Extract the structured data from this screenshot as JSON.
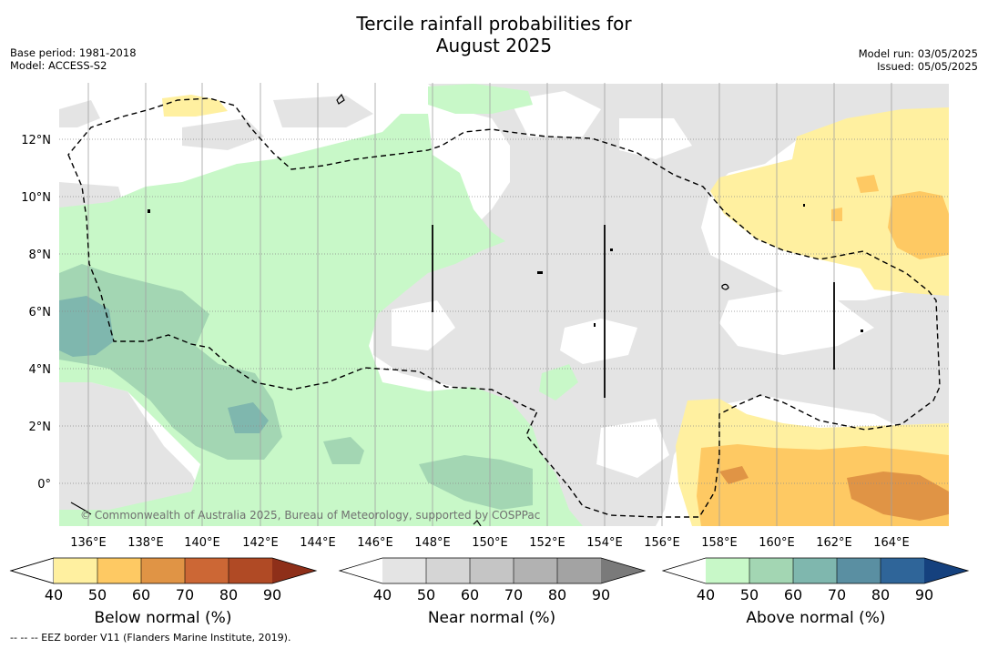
{
  "header": {
    "title_line1": "Tercile rainfall probabilities for",
    "title_line2": "August 2025",
    "base_period": "Base period: 1981-2018",
    "model": "Model: ACCESS-S2",
    "model_run": "Model run: 03/05/2025",
    "issued": "Issued: 05/05/2025"
  },
  "map": {
    "credit": "© Commonwealth of Australia 2025, Bureau of Meteorology, supported by COSPPac",
    "lon_labels": [
      "136°E",
      "138°E",
      "140°E",
      "142°E",
      "144°E",
      "146°E",
      "148°E",
      "150°E",
      "152°E",
      "154°E",
      "156°E",
      "158°E",
      "160°E",
      "162°E",
      "164°E"
    ],
    "lat_labels": [
      "12°N",
      "10°N",
      "8°N",
      "6°N",
      "4°N",
      "2°N",
      "0°"
    ]
  },
  "colorbars": {
    "ticks": [
      "40",
      "50",
      "60",
      "70",
      "80",
      "90"
    ],
    "below": {
      "label": "Below normal (%)",
      "colors": [
        "#fff0a0",
        "#fec963",
        "#e09445",
        "#cc6735",
        "#b04a25",
        "#8e2f19"
      ]
    },
    "near": {
      "label": "Near normal (%)",
      "colors": [
        "#e4e4e4",
        "#d5d5d5",
        "#c5c5c5",
        "#b2b2b2",
        "#a3a3a3",
        "#7a7a7a"
      ]
    },
    "above": {
      "label": "Above normal (%)",
      "colors": [
        "#c8f8c8",
        "#a3d6b3",
        "#7fb7ae",
        "#5a8fa2",
        "#2f6599",
        "#15417e"
      ]
    }
  },
  "footnote": "--  --  -- EEZ border V11 (Flanders Marine Institute, 2019)."
}
